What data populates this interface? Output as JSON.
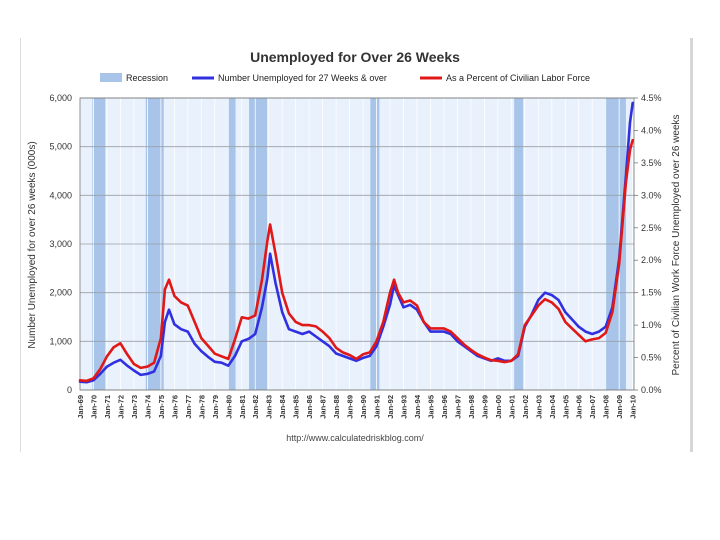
{
  "chart_data": {
    "type": "line",
    "title": "Unemployed for Over 26 Weeks",
    "ylabel": "Number Unemployed for over 26 weeks (000s)",
    "y2label": "Percent of Civilian Work Force Unemployed over 26 weeks",
    "source": "http://www.calculatedriskblog.com/",
    "ylim": [
      0,
      6000
    ],
    "y2lim": [
      0,
      4.5
    ],
    "xlim": [
      1969.0,
      2010.1
    ],
    "yticks": [
      {
        "value": 0,
        "label": "0"
      },
      {
        "value": 1000,
        "label": "1,000"
      },
      {
        "value": 2000,
        "label": "2,000"
      },
      {
        "value": 3000,
        "label": "3,000"
      },
      {
        "value": 4000,
        "label": "4,000"
      },
      {
        "value": 5000,
        "label": "5,000"
      },
      {
        "value": 6000,
        "label": "6,000"
      }
    ],
    "y2ticks": [
      {
        "value": 0.0,
        "label": "0.0%"
      },
      {
        "value": 0.5,
        "label": "0.5%"
      },
      {
        "value": 1.0,
        "label": "1.0%"
      },
      {
        "value": 1.5,
        "label": "1.5%"
      },
      {
        "value": 2.0,
        "label": "2.0%"
      },
      {
        "value": 2.5,
        "label": "2.5%"
      },
      {
        "value": 3.0,
        "label": "3.0%"
      },
      {
        "value": 3.5,
        "label": "3.5%"
      },
      {
        "value": 4.0,
        "label": "4.0%"
      },
      {
        "value": 4.5,
        "label": "4.5%"
      }
    ],
    "xticks": [
      {
        "value": 1969.0,
        "label": "Jan-69"
      },
      {
        "value": 1970.0,
        "label": "Jan-70"
      },
      {
        "value": 1971.0,
        "label": "Jan-71"
      },
      {
        "value": 1972.0,
        "label": "Jan-72"
      },
      {
        "value": 1973.0,
        "label": "Jan-73"
      },
      {
        "value": 1974.0,
        "label": "Jan-74"
      },
      {
        "value": 1975.0,
        "label": "Jan-75"
      },
      {
        "value": 1976.0,
        "label": "Jan-76"
      },
      {
        "value": 1977.0,
        "label": "Jan-77"
      },
      {
        "value": 1978.0,
        "label": "Jan-78"
      },
      {
        "value": 1979.0,
        "label": "Jan-79"
      },
      {
        "value": 1980.0,
        "label": "Jan-80"
      },
      {
        "value": 1981.0,
        "label": "Jan-81"
      },
      {
        "value": 1982.0,
        "label": "Jan-82"
      },
      {
        "value": 1983.0,
        "label": "Jan-83"
      },
      {
        "value": 1984.0,
        "label": "Jan-84"
      },
      {
        "value": 1985.0,
        "label": "Jan-85"
      },
      {
        "value": 1986.0,
        "label": "Jan-86"
      },
      {
        "value": 1987.0,
        "label": "Jan-87"
      },
      {
        "value": 1988.0,
        "label": "Jan-88"
      },
      {
        "value": 1989.0,
        "label": "Jan-89"
      },
      {
        "value": 1990.0,
        "label": "Jan-90"
      },
      {
        "value": 1991.0,
        "label": "Jan-91"
      },
      {
        "value": 1992.0,
        "label": "Jan-92"
      },
      {
        "value": 1993.0,
        "label": "Jan-93"
      },
      {
        "value": 1994.0,
        "label": "Jan-94"
      },
      {
        "value": 1995.0,
        "label": "Jan-95"
      },
      {
        "value": 1996.0,
        "label": "Jan-96"
      },
      {
        "value": 1997.0,
        "label": "Jan-97"
      },
      {
        "value": 1998.0,
        "label": "Jan-98"
      },
      {
        "value": 1999.0,
        "label": "Jan-99"
      },
      {
        "value": 2000.0,
        "label": "Jan-00"
      },
      {
        "value": 2001.0,
        "label": "Jan-01"
      },
      {
        "value": 2002.0,
        "label": "Jan-02"
      },
      {
        "value": 2003.0,
        "label": "Jan-03"
      },
      {
        "value": 2004.0,
        "label": "Jan-04"
      },
      {
        "value": 2005.0,
        "label": "Jan-05"
      },
      {
        "value": 2006.0,
        "label": "Jan-06"
      },
      {
        "value": 2007.0,
        "label": "Jan-07"
      },
      {
        "value": 2008.0,
        "label": "Jan-08"
      },
      {
        "value": 2009.0,
        "label": "Jan-09"
      },
      {
        "value": 2010.0,
        "label": "Jan-10"
      }
    ],
    "recessions": [
      [
        1969.92,
        1970.88
      ],
      [
        1973.88,
        1975.21
      ],
      [
        1980.0,
        1980.54
      ],
      [
        1981.54,
        1982.88
      ],
      [
        1990.54,
        1991.21
      ],
      [
        2001.21,
        2001.88
      ],
      [
        2007.96,
        2009.5
      ]
    ],
    "legend": {
      "position": "top",
      "items": [
        {
          "label": "Recession",
          "kind": "box",
          "color": "#a8c4e8"
        },
        {
          "label": "Number Unemployed for 27 Weeks & over",
          "kind": "line",
          "color": "#3030e0"
        },
        {
          "label": "As a Percent of Civilian Labor Force",
          "kind": "line",
          "color": "#e01818"
        }
      ]
    },
    "grid": true,
    "colors": {
      "number": "#3030e0",
      "percent": "#e01818",
      "recession": "#a8c4e8",
      "plot_bg": "#e8f1fc"
    },
    "series": [
      {
        "name": "Number Unemployed for 27 Weeks & over",
        "axis": "left",
        "color": "#3030e0",
        "x": [
          1969.0,
          1969.5,
          1970.0,
          1970.5,
          1971.0,
          1971.5,
          1972.0,
          1972.5,
          1973.0,
          1973.5,
          1974.0,
          1974.5,
          1975.0,
          1975.3,
          1975.6,
          1976.0,
          1976.5,
          1977.0,
          1977.5,
          1978.0,
          1978.5,
          1979.0,
          1979.5,
          1980.0,
          1980.5,
          1981.0,
          1981.5,
          1982.0,
          1982.5,
          1982.9,
          1983.1,
          1983.5,
          1984.0,
          1984.5,
          1985.0,
          1985.5,
          1986.0,
          1986.5,
          1987.0,
          1987.5,
          1988.0,
          1988.5,
          1989.0,
          1989.5,
          1990.0,
          1990.5,
          1991.0,
          1991.5,
          1992.0,
          1992.3,
          1992.6,
          1993.0,
          1993.5,
          1994.0,
          1994.5,
          1995.0,
          1995.5,
          1996.0,
          1996.5,
          1997.0,
          1997.5,
          1998.0,
          1998.5,
          1999.0,
          1999.5,
          2000.0,
          2000.5,
          2001.0,
          2001.5,
          2002.0,
          2002.5,
          2003.0,
          2003.5,
          2004.0,
          2004.5,
          2005.0,
          2005.5,
          2006.0,
          2006.5,
          2007.0,
          2007.5,
          2008.0,
          2008.5,
          2009.0,
          2009.5,
          2009.8,
          2010.0
        ],
        "y": [
          170,
          160,
          200,
          330,
          480,
          560,
          620,
          500,
          400,
          310,
          330,
          380,
          700,
          1400,
          1650,
          1350,
          1250,
          1200,
          950,
          800,
          680,
          580,
          560,
          500,
          700,
          1000,
          1050,
          1150,
          1700,
          2300,
          2800,
          2200,
          1600,
          1250,
          1200,
          1150,
          1200,
          1100,
          1000,
          900,
          750,
          700,
          650,
          600,
          660,
          700,
          900,
          1300,
          1750,
          2150,
          1950,
          1700,
          1750,
          1650,
          1400,
          1200,
          1200,
          1200,
          1150,
          1000,
          900,
          800,
          700,
          650,
          600,
          650,
          600,
          600,
          700,
          1300,
          1550,
          1850,
          2000,
          1950,
          1850,
          1600,
          1450,
          1300,
          1200,
          1150,
          1200,
          1300,
          1700,
          2700,
          4400,
          5500,
          5900
        ]
      },
      {
        "name": "As a Percent of Civilian Labor Force",
        "axis": "right",
        "color": "#e01818",
        "x": [
          1969.0,
          1969.5,
          1970.0,
          1970.5,
          1971.0,
          1971.5,
          1972.0,
          1972.5,
          1973.0,
          1973.5,
          1974.0,
          1974.5,
          1975.0,
          1975.3,
          1975.6,
          1976.0,
          1976.5,
          1977.0,
          1977.5,
          1978.0,
          1978.5,
          1979.0,
          1979.5,
          1980.0,
          1980.5,
          1981.0,
          1981.5,
          1982.0,
          1982.5,
          1982.9,
          1983.1,
          1983.5,
          1984.0,
          1984.5,
          1985.0,
          1985.5,
          1986.0,
          1986.5,
          1987.0,
          1987.5,
          1988.0,
          1988.5,
          1989.0,
          1989.5,
          1990.0,
          1990.5,
          1991.0,
          1991.5,
          1992.0,
          1992.3,
          1992.6,
          1993.0,
          1993.5,
          1994.0,
          1994.5,
          1995.0,
          1995.5,
          1996.0,
          1996.5,
          1997.0,
          1997.5,
          1998.0,
          1998.5,
          1999.0,
          1999.5,
          2000.0,
          2000.5,
          2001.0,
          2001.5,
          2002.0,
          2002.5,
          2003.0,
          2003.5,
          2004.0,
          2004.5,
          2005.0,
          2005.5,
          2006.0,
          2006.5,
          2007.0,
          2007.5,
          2008.0,
          2008.5,
          2009.0,
          2009.5,
          2009.8,
          2010.0
        ],
        "y": [
          0.15,
          0.14,
          0.18,
          0.32,
          0.52,
          0.66,
          0.72,
          0.55,
          0.4,
          0.34,
          0.36,
          0.42,
          0.8,
          1.55,
          1.7,
          1.45,
          1.35,
          1.3,
          1.05,
          0.8,
          0.68,
          0.56,
          0.52,
          0.48,
          0.78,
          1.12,
          1.1,
          1.15,
          1.7,
          2.3,
          2.55,
          2.1,
          1.5,
          1.18,
          1.05,
          1.0,
          1.0,
          0.98,
          0.9,
          0.8,
          0.65,
          0.58,
          0.54,
          0.48,
          0.55,
          0.58,
          0.75,
          1.05,
          1.5,
          1.7,
          1.5,
          1.35,
          1.38,
          1.3,
          1.05,
          0.95,
          0.95,
          0.95,
          0.9,
          0.8,
          0.7,
          0.62,
          0.55,
          0.5,
          0.46,
          0.45,
          0.43,
          0.45,
          0.55,
          1.0,
          1.15,
          1.3,
          1.4,
          1.35,
          1.25,
          1.05,
          0.95,
          0.85,
          0.75,
          0.78,
          0.8,
          0.88,
          1.2,
          1.95,
          3.2,
          3.7,
          3.85
        ]
      }
    ]
  }
}
